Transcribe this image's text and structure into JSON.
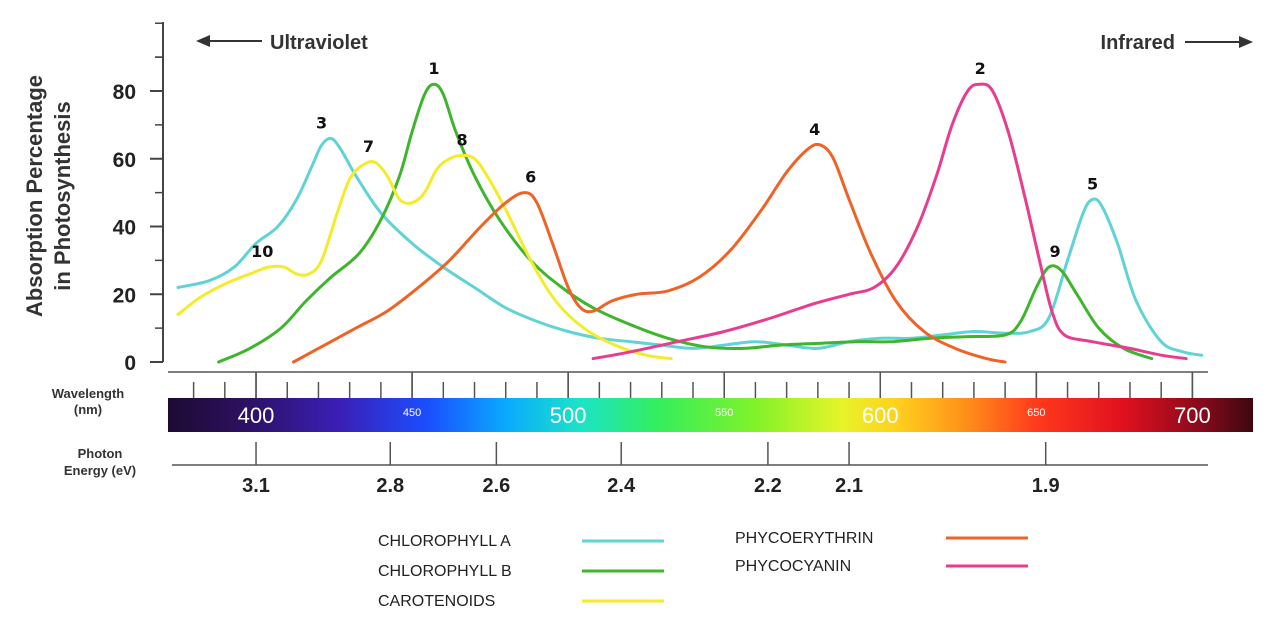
{
  "chart_data": {
    "type": "line",
    "ylabel_lines": [
      "Absorption Percentage",
      "in Photosynthesis"
    ],
    "ylim": [
      0,
      100
    ],
    "yticks": [
      0,
      20,
      40,
      60,
      80
    ],
    "xlim": [
      375,
      705
    ],
    "direction_left": "Ultraviolet",
    "direction_right": "Infrared",
    "wavelength_label_lines": [
      "Wavelength",
      "(nm)"
    ],
    "wavelength_ticks": [
      {
        "value": 400,
        "label": "400",
        "size": "big"
      },
      {
        "value": 450,
        "label": "450",
        "size": "small"
      },
      {
        "value": 500,
        "label": "500",
        "size": "big"
      },
      {
        "value": 550,
        "label": "550",
        "size": "small"
      },
      {
        "value": 600,
        "label": "600",
        "size": "big"
      },
      {
        "value": 650,
        "label": "650",
        "size": "small"
      },
      {
        "value": 700,
        "label": "700",
        "size": "big"
      }
    ],
    "photon_label_lines": [
      "Photon",
      "Energy (eV)"
    ],
    "photon_ticks": [
      {
        "wavelength": 400,
        "label": "3.1"
      },
      {
        "wavelength": 443,
        "label": "2.8"
      },
      {
        "wavelength": 477,
        "label": "2.6"
      },
      {
        "wavelength": 517,
        "label": "2.4"
      },
      {
        "wavelength": 564,
        "label": "2.2"
      },
      {
        "wavelength": 590,
        "label": "2.1"
      },
      {
        "wavelength": 653,
        "label": "1.9"
      }
    ],
    "series": [
      {
        "name": "CHLOROPHYLL  A",
        "color": "#5fd3d5",
        "points": [
          [
            375,
            22
          ],
          [
            385,
            24
          ],
          [
            393,
            28
          ],
          [
            400,
            35
          ],
          [
            407,
            40
          ],
          [
            413,
            48
          ],
          [
            418,
            58
          ],
          [
            421,
            64
          ],
          [
            424,
            66
          ],
          [
            427,
            63
          ],
          [
            432,
            55
          ],
          [
            440,
            44
          ],
          [
            450,
            35
          ],
          [
            460,
            28
          ],
          [
            470,
            22
          ],
          [
            480,
            16
          ],
          [
            490,
            12
          ],
          [
            500,
            9
          ],
          [
            510,
            7
          ],
          [
            520,
            6
          ],
          [
            530,
            5
          ],
          [
            540,
            4
          ],
          [
            550,
            5
          ],
          [
            560,
            6
          ],
          [
            570,
            5
          ],
          [
            580,
            4
          ],
          [
            590,
            6
          ],
          [
            600,
            7
          ],
          [
            610,
            7
          ],
          [
            620,
            8
          ],
          [
            630,
            9
          ],
          [
            640,
            8.5
          ],
          [
            648,
            9
          ],
          [
            654,
            13
          ],
          [
            660,
            30
          ],
          [
            665,
            44
          ],
          [
            668,
            48
          ],
          [
            671,
            46
          ],
          [
            676,
            35
          ],
          [
            682,
            18
          ],
          [
            690,
            6
          ],
          [
            697,
            3
          ],
          [
            703,
            2
          ]
        ]
      },
      {
        "name": "CHLOROPHYLL  B",
        "color": "#3fb52e",
        "points": [
          [
            388,
            0
          ],
          [
            398,
            4
          ],
          [
            408,
            10
          ],
          [
            416,
            18
          ],
          [
            424,
            25
          ],
          [
            433,
            32
          ],
          [
            440,
            42
          ],
          [
            446,
            55
          ],
          [
            450,
            68
          ],
          [
            454,
            79
          ],
          [
            457,
            82
          ],
          [
            460,
            79
          ],
          [
            464,
            68
          ],
          [
            470,
            55
          ],
          [
            478,
            42
          ],
          [
            488,
            30
          ],
          [
            498,
            22
          ],
          [
            508,
            16
          ],
          [
            520,
            11
          ],
          [
            532,
            7
          ],
          [
            544,
            4.5
          ],
          [
            556,
            4
          ],
          [
            568,
            5
          ],
          [
            580,
            5.5
          ],
          [
            592,
            6
          ],
          [
            604,
            6
          ],
          [
            616,
            7
          ],
          [
            628,
            7.5
          ],
          [
            640,
            8
          ],
          [
            645,
            12
          ],
          [
            650,
            22
          ],
          [
            654,
            28
          ],
          [
            658,
            27
          ],
          [
            663,
            20
          ],
          [
            670,
            10
          ],
          [
            678,
            4
          ],
          [
            687,
            1
          ]
        ]
      },
      {
        "name": "CAROTENOIDS",
        "color": "#f2ec2a",
        "points": [
          [
            375,
            14
          ],
          [
            382,
            19
          ],
          [
            390,
            23
          ],
          [
            398,
            26
          ],
          [
            404,
            28
          ],
          [
            409,
            28
          ],
          [
            413,
            26
          ],
          [
            417,
            26
          ],
          [
            421,
            30
          ],
          [
            426,
            44
          ],
          [
            430,
            54
          ],
          [
            434,
            58
          ],
          [
            438,
            59
          ],
          [
            442,
            55
          ],
          [
            446,
            48
          ],
          [
            450,
            47
          ],
          [
            454,
            50
          ],
          [
            458,
            57
          ],
          [
            462,
            60
          ],
          [
            466,
            61
          ],
          [
            470,
            60
          ],
          [
            474,
            55
          ],
          [
            480,
            45
          ],
          [
            488,
            30
          ],
          [
            496,
            18
          ],
          [
            505,
            10
          ],
          [
            515,
            5
          ],
          [
            525,
            2
          ],
          [
            533,
            1
          ]
        ]
      },
      {
        "name": "PHYCOERYTHRIN",
        "color": "#ee6326",
        "points": [
          [
            412,
            0
          ],
          [
            422,
            5
          ],
          [
            432,
            10
          ],
          [
            442,
            15
          ],
          [
            452,
            22
          ],
          [
            462,
            30
          ],
          [
            472,
            40
          ],
          [
            480,
            47
          ],
          [
            486,
            50
          ],
          [
            490,
            47
          ],
          [
            495,
            35
          ],
          [
            500,
            22
          ],
          [
            504,
            16
          ],
          [
            508,
            15
          ],
          [
            514,
            18
          ],
          [
            522,
            20
          ],
          [
            532,
            21
          ],
          [
            542,
            25
          ],
          [
            552,
            33
          ],
          [
            562,
            45
          ],
          [
            570,
            56
          ],
          [
            577,
            63
          ],
          [
            581,
            64
          ],
          [
            585,
            60
          ],
          [
            590,
            48
          ],
          [
            597,
            32
          ],
          [
            605,
            18
          ],
          [
            614,
            9
          ],
          [
            624,
            4
          ],
          [
            634,
            1
          ],
          [
            640,
            0
          ]
        ]
      },
      {
        "name": "PHYCOCYANIN",
        "color": "#e83c8f",
        "points": [
          [
            508,
            1
          ],
          [
            520,
            3
          ],
          [
            535,
            6
          ],
          [
            550,
            9
          ],
          [
            565,
            13
          ],
          [
            578,
            17
          ],
          [
            590,
            20
          ],
          [
            598,
            22
          ],
          [
            605,
            28
          ],
          [
            612,
            40
          ],
          [
            618,
            55
          ],
          [
            623,
            70
          ],
          [
            628,
            80
          ],
          [
            632,
            82
          ],
          [
            636,
            80
          ],
          [
            641,
            68
          ],
          [
            646,
            50
          ],
          [
            651,
            30
          ],
          [
            655,
            15
          ],
          [
            659,
            8
          ],
          [
            668,
            6
          ],
          [
            680,
            4
          ],
          [
            690,
            2
          ],
          [
            698,
            1
          ]
        ]
      }
    ],
    "peak_labels": [
      {
        "text": "1",
        "x": 457,
        "y": 82
      },
      {
        "text": "2",
        "x": 632,
        "y": 82
      },
      {
        "text": "3",
        "x": 421,
        "y": 66
      },
      {
        "text": "4",
        "x": 579,
        "y": 64
      },
      {
        "text": "5",
        "x": 668,
        "y": 48
      },
      {
        "text": "6",
        "x": 488,
        "y": 50
      },
      {
        "text": "7",
        "x": 436,
        "y": 59
      },
      {
        "text": "8",
        "x": 466,
        "y": 61
      },
      {
        "text": "9",
        "x": 656,
        "y": 28
      },
      {
        "text": "10",
        "x": 402,
        "y": 28
      }
    ]
  },
  "legend": {
    "left": [
      {
        "label": "CHLOROPHYLL  A",
        "color": "#5fd3d5"
      },
      {
        "label": "CHLOROPHYLL  B",
        "color": "#3fb52e"
      },
      {
        "label": "CAROTENOIDS",
        "color": "#f2ec2a"
      }
    ],
    "right": [
      {
        "label": "PHYCOERYTHRIN",
        "color": "#ee6326"
      },
      {
        "label": "PHYCOCYANIN",
        "color": "#e83c8f"
      }
    ]
  }
}
